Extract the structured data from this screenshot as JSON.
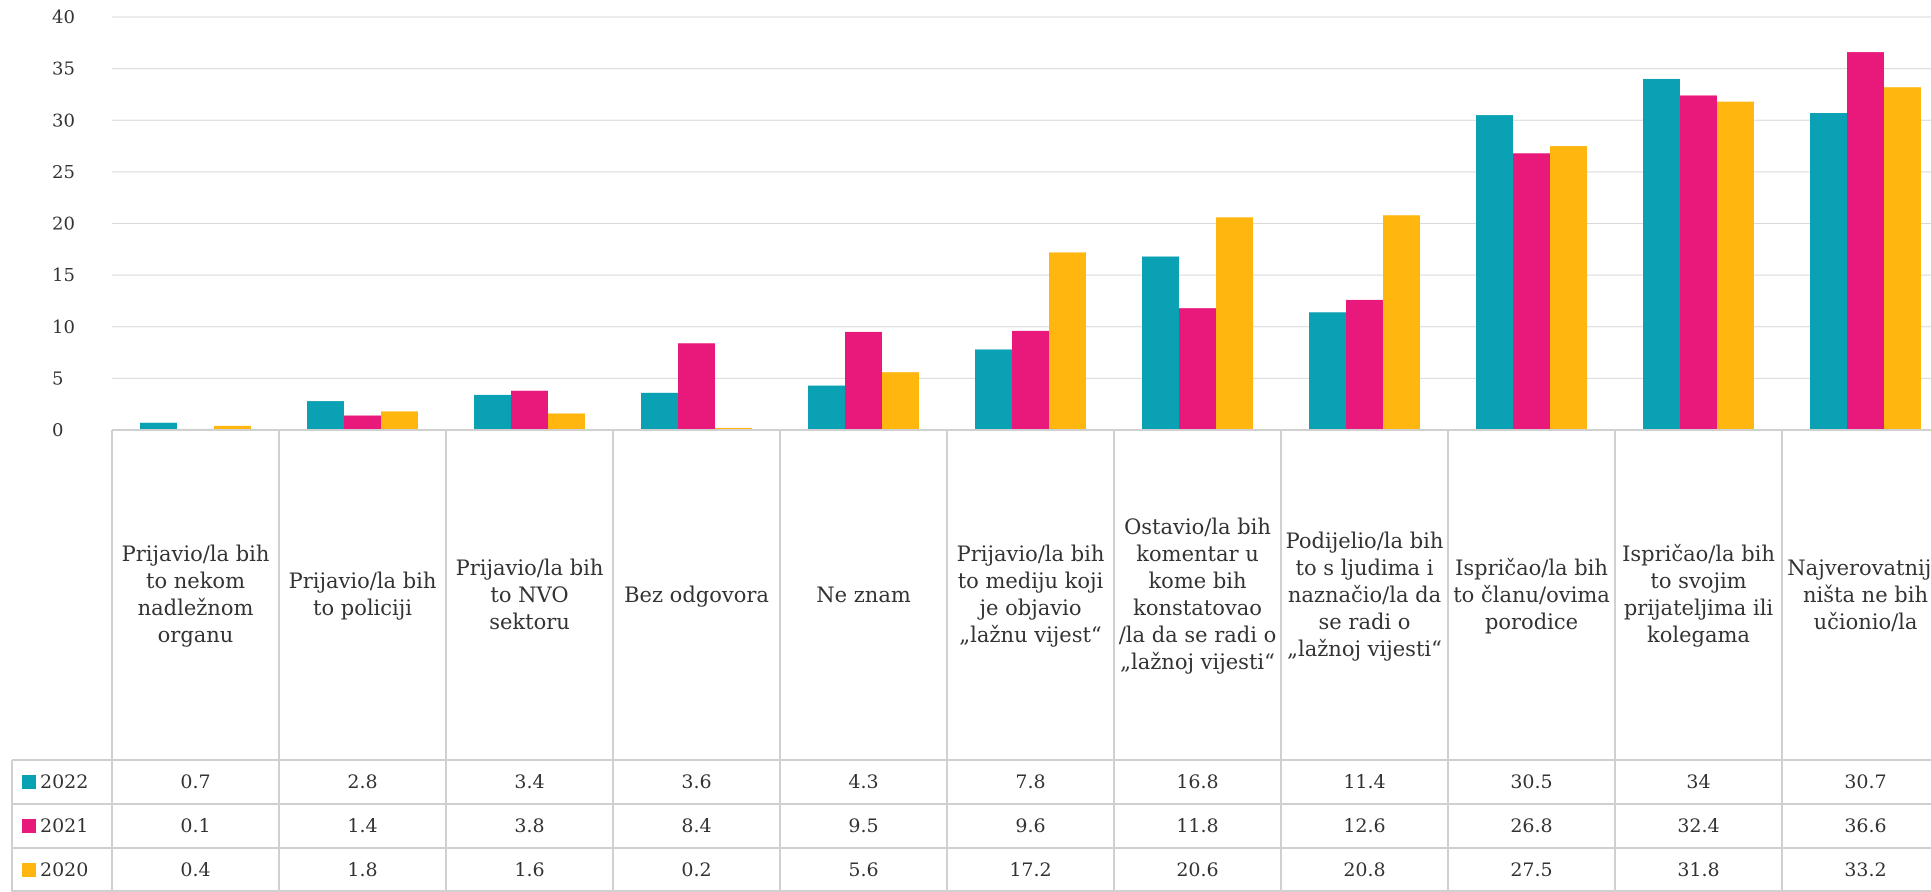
{
  "chart_data": {
    "type": "bar",
    "categories": [
      "Prijavio/la bih to nekom nadležnom organu",
      "Prijavio/la bih to policiji",
      "Prijavio/la bih to NVO sektoru",
      "Bez odgovora",
      "Ne znam",
      "Prijavio/la bih to mediju koji je objavio „lažnu vijest“",
      "Ostavio/la bih komentar u kome bih konstatovao /la da se radi o „lažnoj vijesti“",
      "Podijelio/la bih to s ljudima i naznačio/la da se radi o „lažnoj vijesti“",
      "Ispričao/la bih to članu/ovima porodice",
      "Ispričao/la bih to svojim prijateljima ili kolegama",
      "Najverovatnije ništa ne bih učionio/la"
    ],
    "series": [
      {
        "name": "2022",
        "color": "#0aa1b5",
        "values": [
          0.7,
          2.8,
          3.4,
          3.6,
          4.3,
          7.8,
          16.8,
          11.4,
          30.5,
          34,
          30.7
        ],
        "labels": [
          "0.7",
          "2.8",
          "3.4",
          "3.6",
          "4.3",
          "7.8",
          "16.8",
          "11.4",
          "30.5",
          "34",
          "30.7"
        ]
      },
      {
        "name": "2021",
        "color": "#e8197a",
        "values": [
          0.1,
          1.4,
          3.8,
          8.4,
          9.5,
          9.6,
          11.8,
          12.6,
          26.8,
          32.4,
          36.6
        ],
        "labels": [
          "0.1",
          "1.4",
          "3.8",
          "8.4",
          "9.5",
          "9.6",
          "11.8",
          "12.6",
          "26.8",
          "32.4",
          "36.6"
        ]
      },
      {
        "name": "2020",
        "color": "#ffb60f",
        "values": [
          0.4,
          1.8,
          1.6,
          0.2,
          5.6,
          17.2,
          20.6,
          20.8,
          27.5,
          31.8,
          33.2
        ],
        "labels": [
          "0.4",
          "1.8",
          "1.6",
          "0.2",
          "5.6",
          "17.2",
          "20.6",
          "20.8",
          "27.5",
          "31.8",
          "33.2"
        ]
      }
    ],
    "yticks": [
      "0",
      "5",
      "10",
      "15",
      "20",
      "25",
      "30",
      "35",
      "40"
    ],
    "ylim": [
      0,
      40
    ],
    "grid": true,
    "legend": "data-table-left",
    "title": "",
    "xlabel": "",
    "ylabel": ""
  }
}
